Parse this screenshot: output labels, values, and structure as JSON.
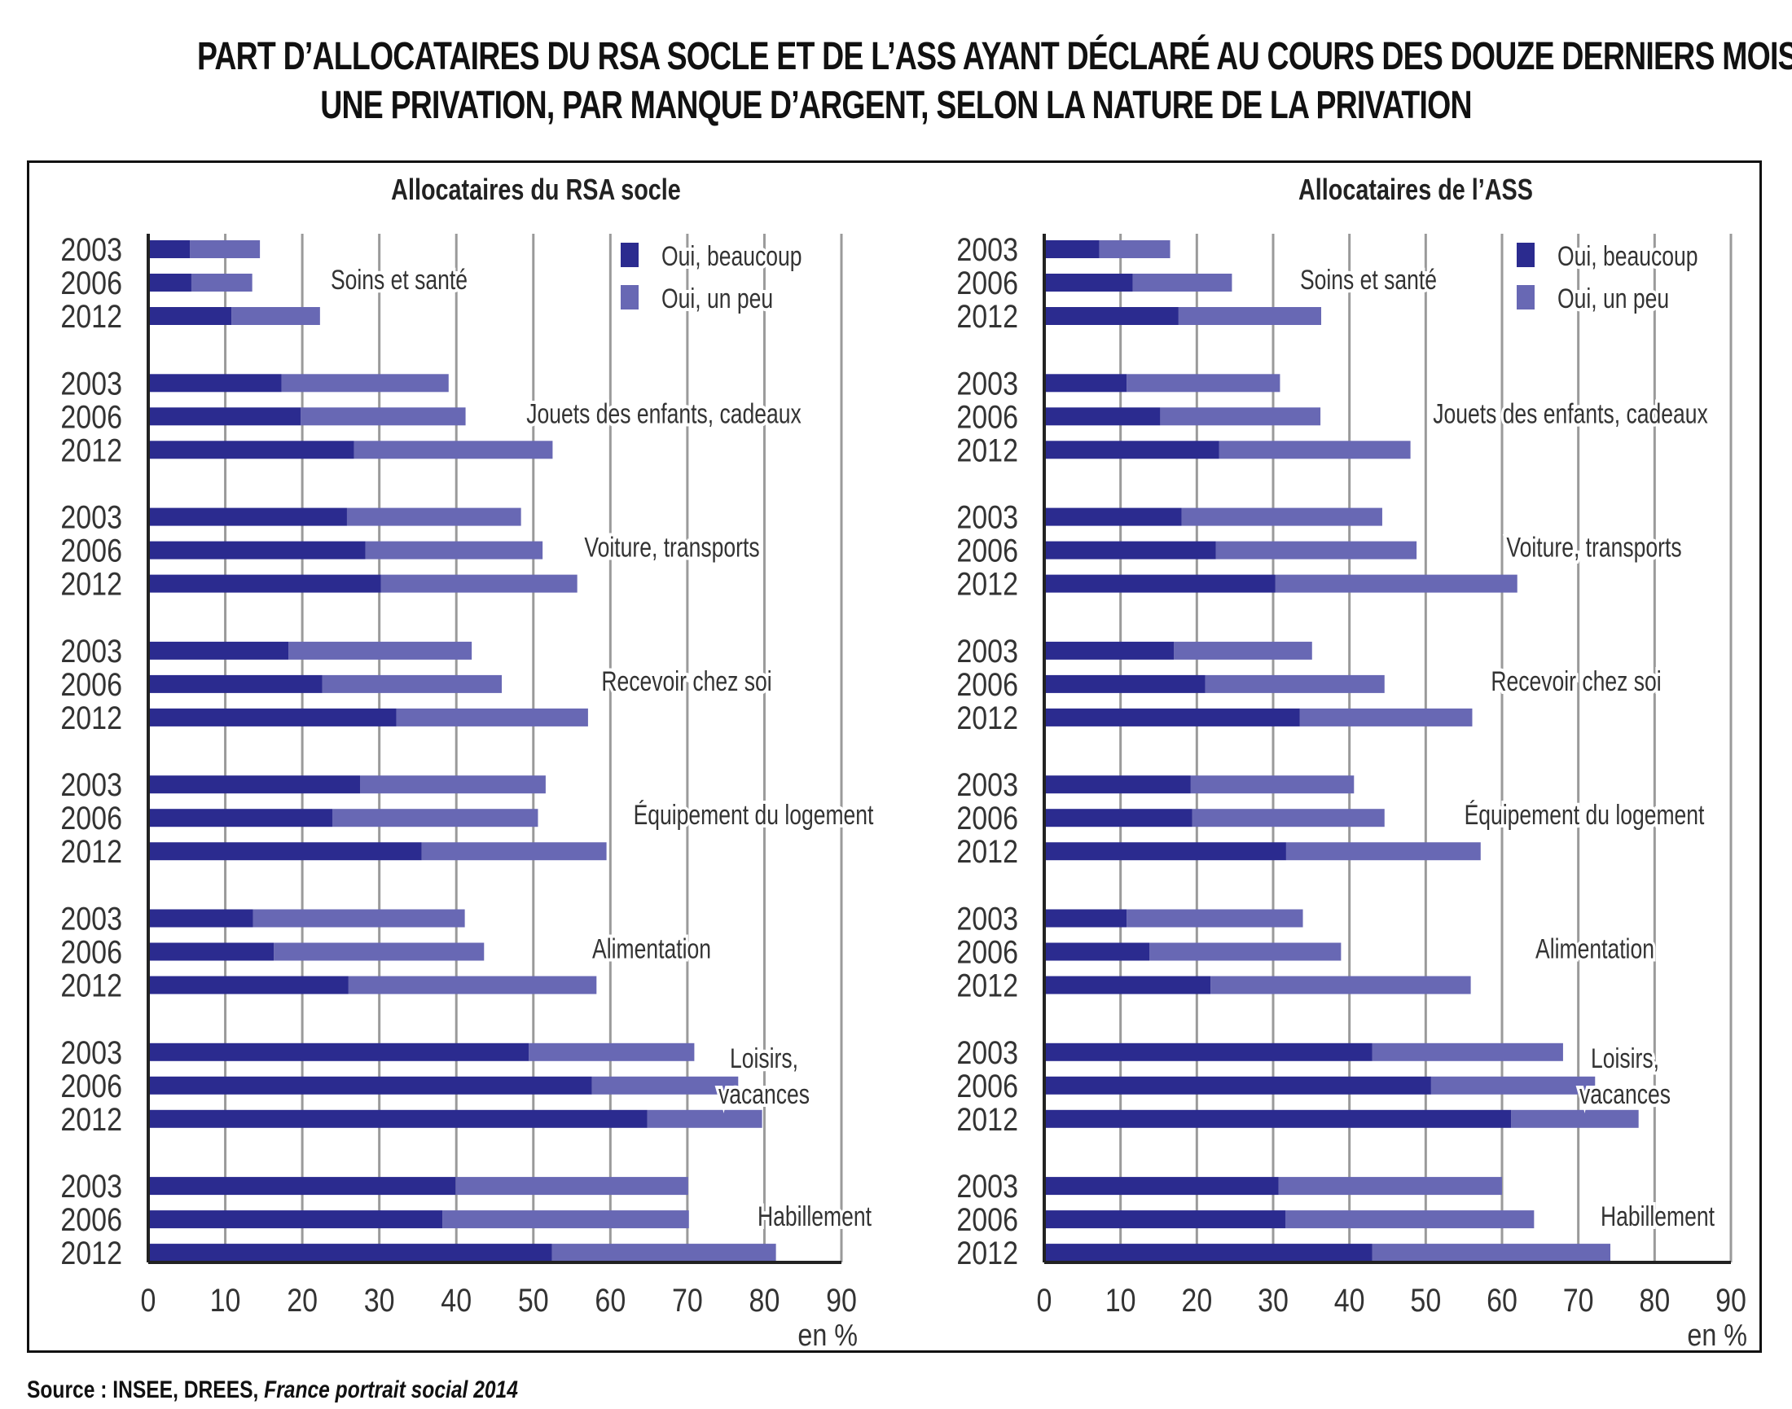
{
  "title": {
    "line1": "PART D’ALLOCATAIRES DU RSA SOCLE ET DE L’ASS AYANT DÉCLARÉ AU COURS DES DOUZE DERNIERS MOIS",
    "line2": "UNE PRIVATION, PAR MANQUE D’ARGENT, SELON LA NATURE DE LA PRIVATION"
  },
  "source": {
    "prefix": "Source : INSEE, DREES, ",
    "publication": "France portrait social 2014"
  },
  "colors": {
    "beaucoup": "#2b2b8f",
    "un_peu": "#6868b4",
    "grid": "#9a9a9a",
    "axis": "#222222"
  },
  "chart_data": [
    {
      "type": "bar",
      "orientation": "horizontal",
      "stacked": true,
      "title": "Allocataires du RSA socle",
      "xlabel": "en %",
      "xlim": [
        0,
        90
      ],
      "xticks": [
        0,
        10,
        20,
        30,
        40,
        50,
        60,
        70,
        80,
        90
      ],
      "grid": true,
      "legend": [
        "Oui, beaucoup",
        "Oui, un peu"
      ],
      "legend_position": "top-right",
      "years": [
        "2003",
        "2006",
        "2012"
      ],
      "groups": [
        {
          "label": "Soins et santé",
          "beaucoup": [
            5.4,
            5.6,
            10.8
          ],
          "un_peu": [
            9.1,
            7.9,
            11.5
          ]
        },
        {
          "label": "Jouets des enfants, cadeaux",
          "beaucoup": [
            17.3,
            19.8,
            26.7
          ],
          "un_peu": [
            21.7,
            21.4,
            25.8
          ]
        },
        {
          "label": "Voiture, transports",
          "beaucoup": [
            25.8,
            28.2,
            30.2
          ],
          "un_peu": [
            22.6,
            23.0,
            25.5
          ]
        },
        {
          "label": "Recevoir chez soi",
          "beaucoup": [
            18.2,
            22.6,
            32.2
          ],
          "un_peu": [
            23.8,
            23.3,
            24.9
          ]
        },
        {
          "label": "Équipement du logement",
          "beaucoup": [
            27.5,
            23.9,
            35.5
          ],
          "un_peu": [
            24.1,
            26.7,
            24.0
          ]
        },
        {
          "label": "Alimentation",
          "beaucoup": [
            13.6,
            16.3,
            26.0
          ],
          "un_peu": [
            27.5,
            27.3,
            32.2
          ]
        },
        {
          "label": "Loisirs, vacances",
          "label_lines": [
            "Loisirs,",
            "vacances"
          ],
          "beaucoup": [
            49.4,
            57.6,
            64.8
          ],
          "un_peu": [
            21.5,
            19.0,
            14.9
          ]
        },
        {
          "label": "Habillement",
          "beaucoup": [
            39.9,
            38.2,
            52.4
          ],
          "un_peu": [
            30.2,
            32.0,
            29.1
          ]
        }
      ]
    },
    {
      "type": "bar",
      "orientation": "horizontal",
      "stacked": true,
      "title": "Allocataires de l’ASS",
      "xlabel": "en %",
      "xlim": [
        0,
        90
      ],
      "xticks": [
        0,
        10,
        20,
        30,
        40,
        50,
        60,
        70,
        80,
        90
      ],
      "grid": true,
      "legend": [
        "Oui, beaucoup",
        "Oui, un peu"
      ],
      "legend_position": "top-right",
      "years": [
        "2003",
        "2006",
        "2012"
      ],
      "groups": [
        {
          "label": "Soins et santé",
          "beaucoup": [
            7.2,
            11.6,
            17.6
          ],
          "un_peu": [
            9.3,
            13.0,
            18.7
          ]
        },
        {
          "label": "Jouets des enfants, cadeaux",
          "beaucoup": [
            10.8,
            15.2,
            22.9
          ],
          "un_peu": [
            20.1,
            21.0,
            25.1
          ]
        },
        {
          "label": "Voiture, transports",
          "beaucoup": [
            18.0,
            22.5,
            30.3
          ],
          "un_peu": [
            26.3,
            26.3,
            31.7
          ]
        },
        {
          "label": "Recevoir chez soi",
          "beaucoup": [
            17.0,
            21.1,
            33.5
          ],
          "un_peu": [
            18.1,
            23.5,
            22.6
          ]
        },
        {
          "label": "Équipement du logement",
          "beaucoup": [
            19.2,
            19.4,
            31.7
          ],
          "un_peu": [
            21.4,
            25.2,
            25.5
          ]
        },
        {
          "label": "Alimentation",
          "beaucoup": [
            10.8,
            13.8,
            21.8
          ],
          "un_peu": [
            23.1,
            25.1,
            34.1
          ]
        },
        {
          "label": "Loisirs, vacances",
          "label_lines": [
            "Loisirs,",
            "vacances"
          ],
          "beaucoup": [
            43.0,
            50.7,
            61.2
          ],
          "un_peu": [
            25.0,
            21.5,
            16.7
          ]
        },
        {
          "label": "Habillement",
          "beaucoup": [
            30.7,
            31.6,
            43.0
          ],
          "un_peu": [
            29.3,
            32.6,
            31.2
          ]
        }
      ]
    }
  ]
}
